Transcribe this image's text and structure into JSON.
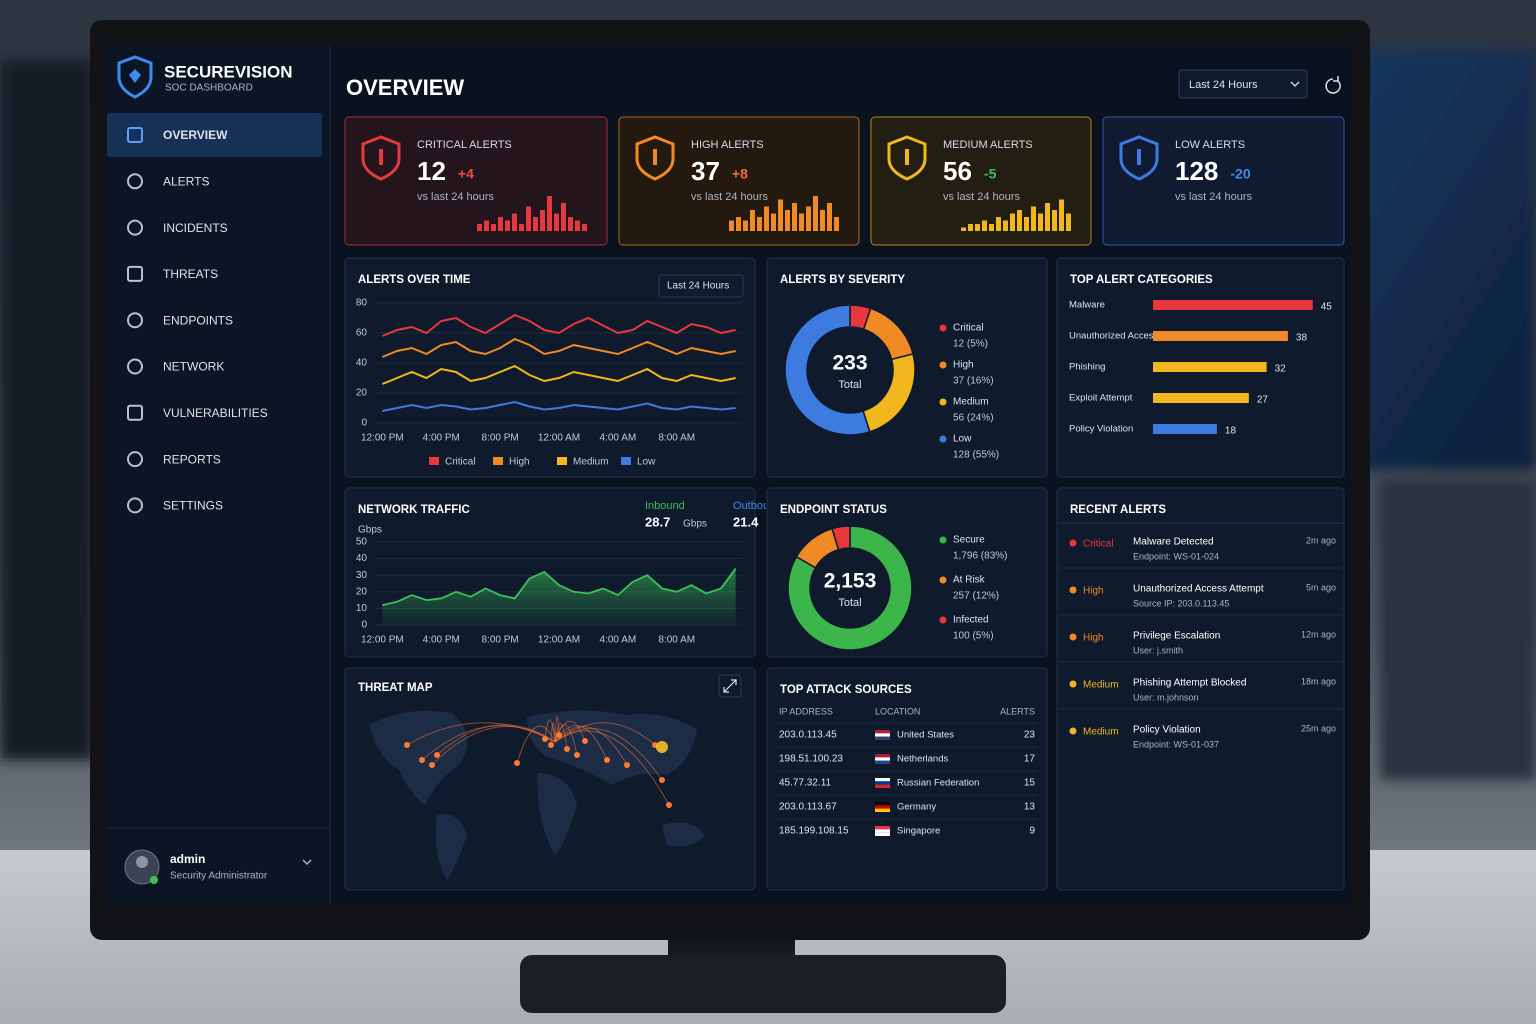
{
  "brand": {
    "name": "SECUREVISION",
    "subtitle": "SOC DASHBOARD"
  },
  "nav": [
    "OVERVIEW",
    "ALERTS",
    "INCIDENTS",
    "THREATS",
    "ENDPOINTS",
    "NETWORK",
    "VULNERABILITIES",
    "REPORTS",
    "SETTINGS"
  ],
  "user": {
    "name": "admin",
    "role": "Security Administrator"
  },
  "page_title": "OVERVIEW",
  "time_range": "Last 24 Hours",
  "kpis": [
    {
      "label": "CRITICAL ALERTS",
      "value": 12,
      "delta": "+4",
      "note": "vs last 24 hours",
      "color": "#e23a3f",
      "delta_color": "#ef4b4b",
      "spark": [
        2,
        3,
        2,
        4,
        3,
        5,
        2,
        7,
        4,
        6,
        10,
        5,
        8,
        4,
        3,
        2
      ]
    },
    {
      "label": "HIGH ALERTS",
      "value": 37,
      "delta": "+8",
      "note": "vs last 24 hours",
      "color": "#f08a24",
      "delta_color": "#f0703a",
      "spark": [
        3,
        4,
        3,
        6,
        4,
        7,
        5,
        9,
        6,
        8,
        5,
        7,
        10,
        6,
        8,
        4
      ]
    },
    {
      "label": "MEDIUM ALERTS",
      "value": 56,
      "delta": "-5",
      "note": "vs last 24 hours",
      "color": "#f2b71f",
      "delta_color": "#3cc15a",
      "spark": [
        1,
        2,
        2,
        3,
        2,
        4,
        3,
        5,
        6,
        4,
        7,
        5,
        8,
        6,
        9,
        5
      ]
    },
    {
      "label": "LOW ALERTS",
      "value": 128,
      "delta": "-20",
      "note": "vs last 24 hours",
      "color": "#3d7be0",
      "delta_color": "#3d8bf0"
    }
  ],
  "chart_data": [
    {
      "type": "line",
      "title": "ALERTS OVER TIME",
      "dropdown": "Last 24 Hours",
      "categories": [
        "12:00 PM",
        null,
        null,
        null,
        "4:00 PM",
        null,
        null,
        null,
        "8:00 PM",
        null,
        null,
        null,
        "12:00 AM",
        null,
        null,
        null,
        "4:00 AM",
        null,
        null,
        null,
        "8:00 AM",
        null,
        null,
        null,
        null
      ],
      "ylim": [
        0,
        80
      ],
      "yticks": [
        0,
        20,
        40,
        60,
        80
      ],
      "grid": true,
      "series": [
        {
          "name": "Critical",
          "color": "#e8383d",
          "values": [
            58,
            62,
            64,
            60,
            68,
            70,
            64,
            60,
            66,
            72,
            68,
            62,
            60,
            66,
            70,
            65,
            60,
            62,
            68,
            64,
            60,
            66,
            64,
            60,
            62
          ]
        },
        {
          "name": "High",
          "color": "#f08a24",
          "values": [
            44,
            48,
            50,
            46,
            52,
            54,
            48,
            46,
            50,
            56,
            52,
            46,
            48,
            52,
            50,
            48,
            46,
            50,
            54,
            50,
            46,
            50,
            48,
            46,
            48
          ]
        },
        {
          "name": "Medium",
          "color": "#f2b71f",
          "values": [
            26,
            30,
            34,
            30,
            36,
            34,
            28,
            30,
            34,
            38,
            32,
            28,
            30,
            34,
            32,
            30,
            28,
            32,
            36,
            30,
            28,
            32,
            30,
            28,
            30
          ]
        },
        {
          "name": "Low",
          "color": "#3d7be0",
          "values": [
            8,
            10,
            12,
            10,
            12,
            11,
            9,
            10,
            12,
            14,
            11,
            9,
            10,
            12,
            11,
            10,
            9,
            11,
            13,
            10,
            9,
            11,
            10,
            9,
            10
          ]
        }
      ]
    },
    {
      "type": "donut",
      "title": "ALERTS BY SEVERITY",
      "total": 233,
      "total_label": "Total",
      "categories": [
        "Critical",
        "High",
        "Medium",
        "Low"
      ],
      "values": [
        12,
        37,
        56,
        128
      ],
      "value_labels": [
        "12 (5%)",
        "37 (16%)",
        "56 (24%)",
        "128 (55%)"
      ],
      "colors": [
        "#e8383d",
        "#f08a24",
        "#f2b71f",
        "#3d7be0"
      ]
    },
    {
      "type": "hbar",
      "title": "TOP ALERT CATEGORIES",
      "categories": [
        "Malware",
        "Unauthorized Access",
        "Phishing",
        "Exploit Attempt",
        "Policy Violation"
      ],
      "values": [
        45,
        38,
        32,
        27,
        18
      ],
      "colors": [
        "#e8383d",
        "#f08a24",
        "#f2b71f",
        "#f2b71f",
        "#3d7be0"
      ]
    },
    {
      "type": "area",
      "title": "NETWORK TRAFFIC",
      "ylabel": "Gbps",
      "stats": [
        {
          "name": "Inbound",
          "value": 28.7,
          "unit": "Gbps",
          "color": "#3cc15a"
        },
        {
          "name": "Outbound",
          "value": 21.4,
          "unit": "Gbps",
          "color": "#3d8bf0"
        }
      ],
      "categories": [
        "12:00 PM",
        null,
        null,
        null,
        "4:00 PM",
        null,
        null,
        null,
        "8:00 PM",
        null,
        null,
        null,
        "12:00 AM",
        null,
        null,
        null,
        "4:00 AM",
        null,
        null,
        null,
        "8:00 AM",
        null,
        null,
        null,
        null
      ],
      "ylim": [
        0,
        50
      ],
      "yticks": [
        0,
        10,
        20,
        30,
        40,
        50
      ],
      "grid": true,
      "series": [
        {
          "name": "Inbound",
          "color": "#3cc15a",
          "values": [
            12,
            14,
            18,
            15,
            16,
            20,
            17,
            22,
            18,
            16,
            28,
            32,
            24,
            20,
            19,
            22,
            18,
            26,
            30,
            22,
            20,
            24,
            19,
            22,
            34
          ]
        }
      ]
    },
    {
      "type": "donut",
      "title": "ENDPOINT STATUS",
      "total": {
        "value": 2153,
        "label": "2,153"
      },
      "total_label": "Total",
      "categories": [
        "Secure",
        "At Risk",
        "Infected"
      ],
      "values": [
        1796,
        257,
        100
      ],
      "value_labels": [
        "1,796 (83%)",
        "257 (12%)",
        "100 (5%)"
      ],
      "colors": [
        "#3cb54a",
        "#f08a24",
        "#e8383d"
      ]
    }
  ],
  "threat_map": {
    "title": "THREAT MAP"
  },
  "attack_sources": {
    "title": "TOP ATTACK SOURCES",
    "columns": [
      "IP ADDRESS",
      "LOCATION",
      "ALERTS"
    ],
    "rows": [
      [
        "203.0.113.45",
        "United States",
        23
      ],
      [
        "198.51.100.23",
        "Netherlands",
        17
      ],
      [
        "45.77.32.11",
        "Russian Federation",
        15
      ],
      [
        "203.0.113.67",
        "Germany",
        13
      ],
      [
        "185.199.108.15",
        "Singapore",
        9
      ]
    ]
  },
  "recent_alerts": {
    "title": "RECENT ALERTS",
    "items": [
      {
        "severity": "Critical",
        "color": "#e8383d",
        "title": "Malware Detected",
        "detail": "Endpoint: WS-01-024",
        "time": "2m ago"
      },
      {
        "severity": "High",
        "color": "#f08a24",
        "title": "Unauthorized Access Attempt",
        "detail": "Source IP: 203.0.113.45",
        "time": "5m ago"
      },
      {
        "severity": "High",
        "color": "#f08a24",
        "title": "Privilege Escalation",
        "detail": "User: j.smith",
        "time": "12m ago"
      },
      {
        "severity": "Medium",
        "color": "#f2b71f",
        "title": "Phishing Attempt Blocked",
        "detail": "User: m.johnson",
        "time": "18m ago"
      },
      {
        "severity": "Medium",
        "color": "#f2b71f",
        "title": "Policy Violation",
        "detail": "Endpoint: WS-01-037",
        "time": "25m ago"
      }
    ]
  }
}
